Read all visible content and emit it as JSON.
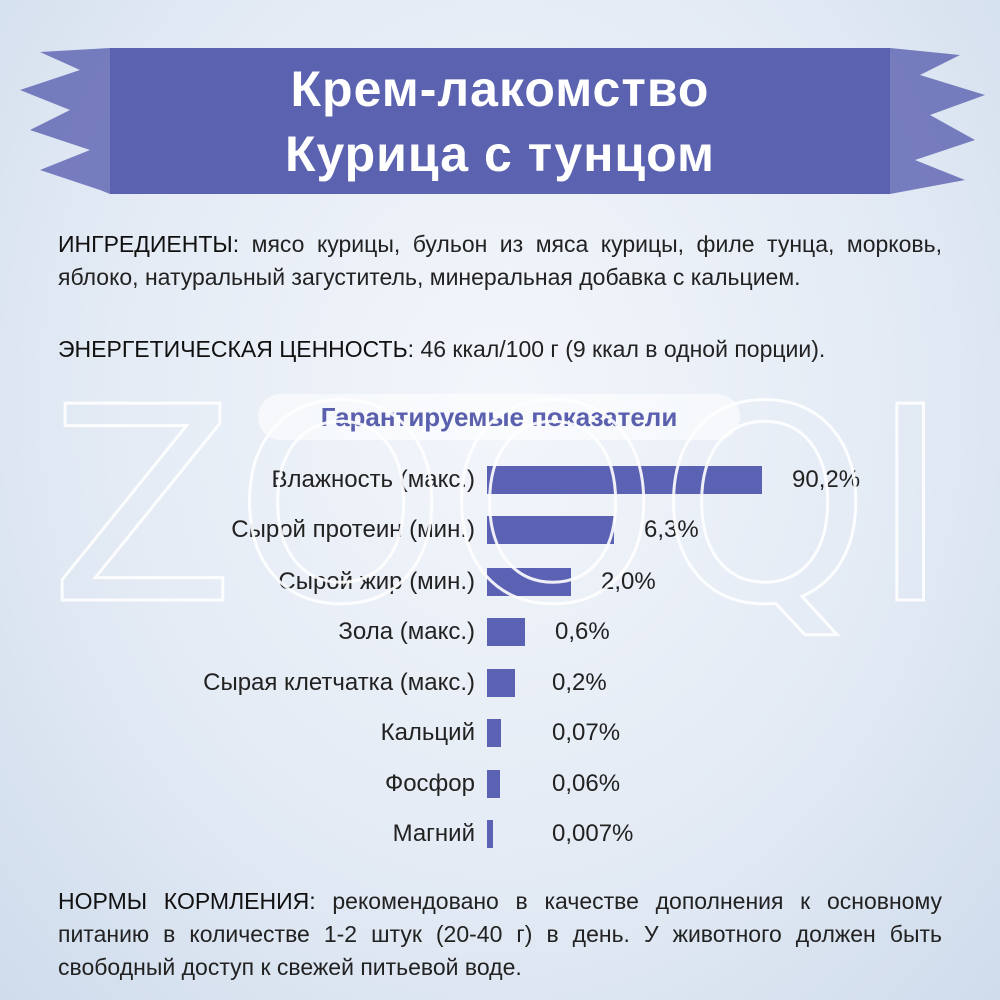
{
  "header": {
    "title_lines": [
      "Крем-лакомство",
      "Курица с тунцом"
    ]
  },
  "ingredients": {
    "label": "ИНГРЕДИЕНТЫ:",
    "text": "мясо курицы, бульон из мяса курицы, филе тунца, морковь, яблоко, натуральный загуститель, минеральная добавка с кальцием."
  },
  "energy": {
    "label": "ЭНЕРГЕТИЧЕСКАЯ ЦЕННОСТЬ:",
    "text": "46 ккал/100 г (9 ккал в одной порции)."
  },
  "guaranteed": {
    "title": "Гарантируемые показатели",
    "rows": [
      {
        "label": "Влажность (макс.)",
        "value": "90,2%"
      },
      {
        "label": "Сырой протеин (мин.)",
        "value": "6,3%"
      },
      {
        "label": "Сырой жир (мин.)",
        "value": "2,0%"
      },
      {
        "label": "Зола (макс.)",
        "value": "0,6%"
      },
      {
        "label": "Сырая клетчатка (макс.)",
        "value": "0,2%"
      },
      {
        "label": "Кальций",
        "value": "0,07%"
      },
      {
        "label": "Фосфор",
        "value": "0,06%"
      },
      {
        "label": "Магний",
        "value": "0,007%"
      }
    ]
  },
  "feeding": {
    "label": "НОРМЫ КОРМЛЕНИЯ:",
    "text": "рекомендовано в качестве дополнения к основному питанию в количестве 1-2 штук (20-40 г) в день. У животного должен быть свободный доступ к свежей питьевой воде."
  },
  "watermark": "ZOOQI"
}
